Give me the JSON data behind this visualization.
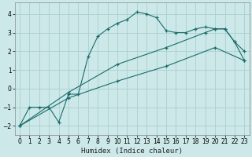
{
  "xlabel": "Humidex (Indice chaleur)",
  "bg_color": "#cce8e8",
  "line_color": "#1a6b6b",
  "grid_color": "#aacfcf",
  "xlim": [
    -0.5,
    23.5
  ],
  "ylim": [
    -2.5,
    4.6
  ],
  "xticks": [
    0,
    1,
    2,
    3,
    4,
    5,
    6,
    7,
    8,
    9,
    10,
    11,
    12,
    13,
    14,
    15,
    16,
    17,
    18,
    19,
    20,
    21,
    22,
    23
  ],
  "yticks": [
    -2,
    -1,
    0,
    1,
    2,
    3,
    4
  ],
  "line1_x": [
    0,
    1,
    2,
    3,
    4,
    5,
    6,
    7,
    8,
    9,
    10,
    11,
    12,
    13,
    14,
    15,
    16,
    17,
    18,
    19,
    20,
    21,
    22,
    23
  ],
  "line1_y": [
    -2.0,
    -1.0,
    -1.0,
    -1.0,
    -1.8,
    -0.3,
    -0.3,
    1.7,
    2.8,
    3.2,
    3.5,
    3.7,
    4.1,
    4.0,
    3.8,
    3.1,
    3.0,
    3.0,
    3.2,
    3.3,
    3.2,
    3.2,
    2.5,
    2.0
  ],
  "line2_x": [
    0,
    5,
    10,
    15,
    19,
    20,
    21,
    22,
    23
  ],
  "line2_y": [
    -2.0,
    -0.2,
    1.3,
    2.2,
    3.0,
    3.2,
    3.2,
    2.5,
    1.5
  ],
  "line3_x": [
    0,
    5,
    10,
    15,
    20,
    23
  ],
  "line3_y": [
    -2.0,
    -0.5,
    0.4,
    1.2,
    2.2,
    1.5
  ]
}
